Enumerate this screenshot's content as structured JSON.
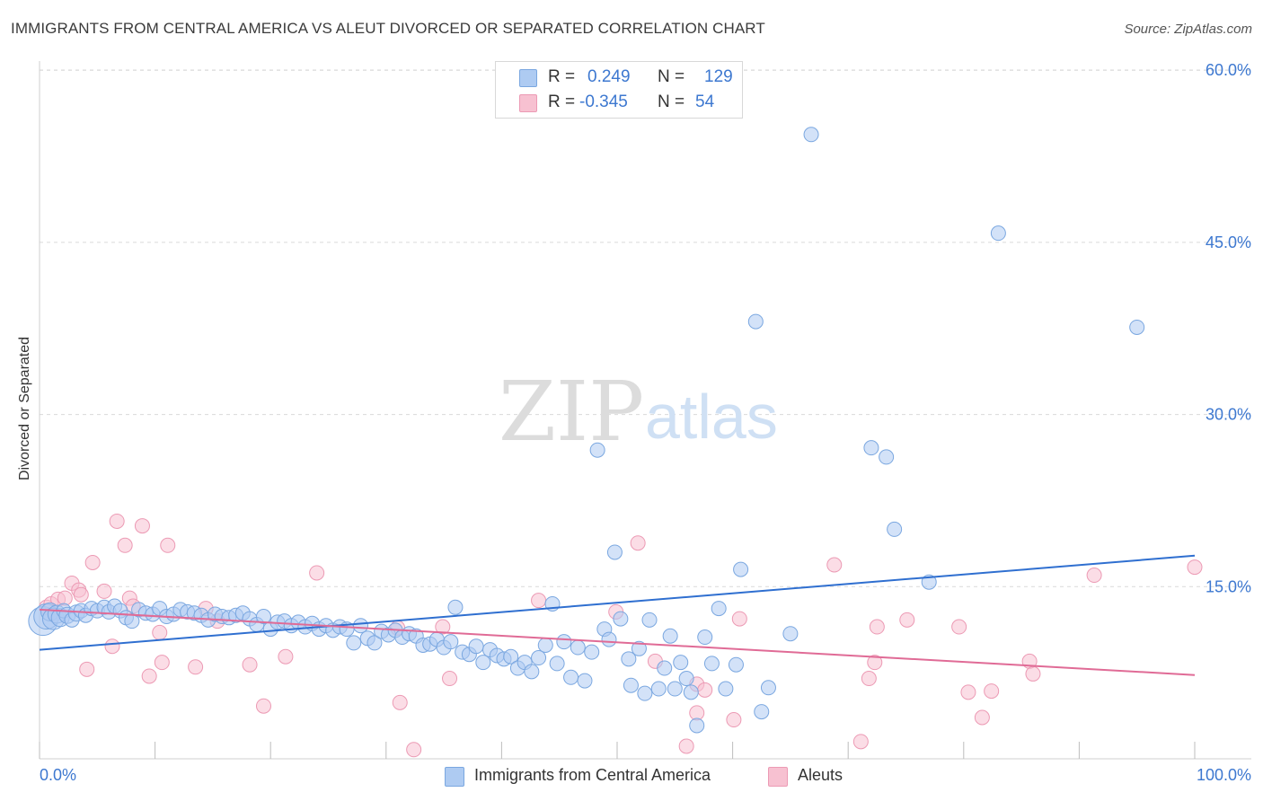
{
  "title": "IMMIGRANTS FROM CENTRAL AMERICA VS ALEUT DIVORCED OR SEPARATED CORRELATION CHART",
  "source": "Source: ZipAtlas.com",
  "watermark": {
    "zip": "ZIP",
    "atlas": "atlas"
  },
  "legend": {
    "series1": {
      "r_label": "R =",
      "r_value": "0.249",
      "n_label": "N =",
      "n_value": "129"
    },
    "series2": {
      "r_label": "R =",
      "r_value": "-0.345",
      "n_label": "N =",
      "n_value": "54"
    }
  },
  "colors": {
    "blue_fill": "#aecbf2",
    "blue_stroke": "#7aa7e0",
    "blue_line": "#2f6fd0",
    "pink_fill": "#f7c1d1",
    "pink_stroke": "#ec9ab4",
    "pink_line": "#e06b96",
    "axis_text": "#3d78d0",
    "grid": "#d9d9d9"
  },
  "chart_data": {
    "type": "scatter",
    "title": "IMMIGRANTS FROM CENTRAL AMERICA VS ALEUT DIVORCED OR SEPARATED CORRELATION CHART",
    "xlabel": "",
    "ylabel": "Divorced or Separated",
    "xlim": [
      0,
      100
    ],
    "ylim": [
      0,
      62
    ],
    "x_tick_labels": [
      "0.0%",
      "100.0%"
    ],
    "y_ticks": [
      15,
      30,
      45,
      60
    ],
    "y_tick_labels": [
      "15.0%",
      "30.0%",
      "45.0%",
      "60.0%"
    ],
    "grid": "horizontal dashed",
    "legend_placement": "top-center and bottom",
    "series": [
      {
        "name": "Immigrants from Central America",
        "R": 0.249,
        "N": 129,
        "trend": [
          [
            0,
            9.5
          ],
          [
            100,
            17.7
          ]
        ],
        "points": [
          [
            0.3,
            12.0,
            16
          ],
          [
            0.6,
            12.4,
            14
          ],
          [
            0.9,
            12.8,
            10
          ],
          [
            1.2,
            12.2,
            12
          ],
          [
            1.5,
            12.6,
            10
          ],
          [
            1.8,
            12.3,
            10
          ],
          [
            2.1,
            12.9,
            8
          ],
          [
            2.4,
            12.5,
            9
          ],
          [
            2.8,
            12.1,
            8
          ],
          [
            3.2,
            12.7,
            9
          ],
          [
            3.6,
            12.9,
            8
          ],
          [
            4.0,
            12.5,
            8
          ],
          [
            4.5,
            13.1,
            8
          ],
          [
            5.0,
            12.9,
            8
          ],
          [
            5.6,
            13.2,
            8
          ],
          [
            6.0,
            12.8,
            8
          ],
          [
            6.5,
            13.3,
            8
          ],
          [
            7.0,
            12.9,
            8
          ],
          [
            7.5,
            12.3,
            8
          ],
          [
            8.0,
            12.0,
            8
          ],
          [
            8.6,
            13.0,
            8
          ],
          [
            9.2,
            12.7,
            8
          ],
          [
            9.8,
            12.6,
            8
          ],
          [
            10.4,
            13.1,
            8
          ],
          [
            11.0,
            12.4,
            8
          ],
          [
            11.6,
            12.6,
            8
          ],
          [
            12.2,
            13.0,
            8
          ],
          [
            12.8,
            12.8,
            8
          ],
          [
            13.4,
            12.7,
            8
          ],
          [
            14.0,
            12.5,
            8
          ],
          [
            14.6,
            12.1,
            8
          ],
          [
            15.2,
            12.6,
            8
          ],
          [
            15.8,
            12.4,
            8
          ],
          [
            16.4,
            12.3,
            8
          ],
          [
            17.0,
            12.5,
            8
          ],
          [
            17.6,
            12.7,
            8
          ],
          [
            18.2,
            12.2,
            8
          ],
          [
            18.8,
            11.7,
            8
          ],
          [
            19.4,
            12.4,
            8
          ],
          [
            20.0,
            11.3,
            8
          ],
          [
            20.6,
            11.9,
            8
          ],
          [
            21.2,
            12.0,
            8
          ],
          [
            21.8,
            11.6,
            8
          ],
          [
            22.4,
            11.9,
            8
          ],
          [
            23.0,
            11.5,
            8
          ],
          [
            23.6,
            11.8,
            8
          ],
          [
            24.2,
            11.3,
            8
          ],
          [
            24.8,
            11.6,
            8
          ],
          [
            25.4,
            11.2,
            8
          ],
          [
            26.0,
            11.5,
            8
          ],
          [
            26.6,
            11.3,
            8
          ],
          [
            27.2,
            10.1,
            8
          ],
          [
            27.8,
            11.6,
            8
          ],
          [
            28.4,
            10.5,
            8
          ],
          [
            29.0,
            10.1,
            8
          ],
          [
            29.6,
            11.1,
            8
          ],
          [
            30.2,
            10.8,
            8
          ],
          [
            30.8,
            11.2,
            8
          ],
          [
            31.4,
            10.6,
            8
          ],
          [
            32.0,
            10.9,
            8
          ],
          [
            32.6,
            10.7,
            8
          ],
          [
            33.2,
            9.9,
            8
          ],
          [
            33.8,
            10.0,
            8
          ],
          [
            34.4,
            10.4,
            8
          ],
          [
            35.0,
            9.7,
            8
          ],
          [
            35.6,
            10.2,
            8
          ],
          [
            36.0,
            13.2,
            8
          ],
          [
            36.6,
            9.3,
            8
          ],
          [
            37.2,
            9.1,
            8
          ],
          [
            37.8,
            9.8,
            8
          ],
          [
            38.4,
            8.4,
            8
          ],
          [
            39.0,
            9.5,
            8
          ],
          [
            39.6,
            9.0,
            8
          ],
          [
            40.2,
            8.7,
            8
          ],
          [
            40.8,
            8.9,
            8
          ],
          [
            41.4,
            7.9,
            8
          ],
          [
            42.0,
            8.4,
            8
          ],
          [
            42.6,
            7.6,
            8
          ],
          [
            43.2,
            8.8,
            8
          ],
          [
            43.8,
            9.9,
            8
          ],
          [
            44.4,
            13.5,
            8
          ],
          [
            44.8,
            8.3,
            8
          ],
          [
            45.4,
            10.2,
            8
          ],
          [
            46.0,
            7.1,
            8
          ],
          [
            46.6,
            9.7,
            8
          ],
          [
            47.2,
            6.8,
            8
          ],
          [
            47.8,
            9.3,
            8
          ],
          [
            48.3,
            26.9,
            8
          ],
          [
            48.9,
            11.3,
            8
          ],
          [
            49.3,
            10.4,
            8
          ],
          [
            49.8,
            18.0,
            8
          ],
          [
            50.3,
            12.2,
            8
          ],
          [
            51.0,
            8.7,
            8
          ],
          [
            51.2,
            6.4,
            8
          ],
          [
            51.9,
            9.6,
            8
          ],
          [
            52.4,
            5.7,
            8
          ],
          [
            52.8,
            12.1,
            8
          ],
          [
            53.6,
            6.1,
            8
          ],
          [
            54.1,
            7.9,
            8
          ],
          [
            54.6,
            10.7,
            8
          ],
          [
            55.0,
            6.1,
            8
          ],
          [
            55.5,
            8.4,
            8
          ],
          [
            56.0,
            7.0,
            8
          ],
          [
            56.4,
            5.8,
            8
          ],
          [
            56.9,
            2.9,
            8
          ],
          [
            57.6,
            10.6,
            8
          ],
          [
            58.2,
            8.3,
            8
          ],
          [
            58.8,
            13.1,
            8
          ],
          [
            59.4,
            6.1,
            8
          ],
          [
            60.3,
            8.2,
            8
          ],
          [
            60.7,
            16.5,
            8
          ],
          [
            62.0,
            38.1,
            8
          ],
          [
            62.5,
            4.1,
            8
          ],
          [
            63.1,
            6.2,
            8
          ],
          [
            65.0,
            10.9,
            8
          ],
          [
            66.8,
            54.4,
            8
          ],
          [
            72.0,
            27.1,
            8
          ],
          [
            73.3,
            26.3,
            8
          ],
          [
            74.0,
            20.0,
            8
          ],
          [
            77.0,
            15.4,
            8
          ],
          [
            83.0,
            45.8,
            8
          ],
          [
            95.0,
            37.6,
            8
          ]
        ]
      },
      {
        "name": "Aleuts",
        "R": -0.345,
        "N": 54,
        "trend": [
          [
            0,
            13.0
          ],
          [
            100,
            7.3
          ]
        ],
        "points": [
          [
            0.6,
            13.2,
            8
          ],
          [
            1.0,
            13.5,
            8
          ],
          [
            1.6,
            13.9,
            8
          ],
          [
            2.2,
            14.0,
            8
          ],
          [
            2.8,
            15.3,
            8
          ],
          [
            3.4,
            14.7,
            8
          ],
          [
            3.6,
            14.3,
            8
          ],
          [
            4.1,
            7.8,
            8
          ],
          [
            4.6,
            17.1,
            8
          ],
          [
            5.6,
            14.6,
            8
          ],
          [
            6.3,
            9.8,
            8
          ],
          [
            6.7,
            20.7,
            8
          ],
          [
            7.4,
            18.6,
            8
          ],
          [
            7.8,
            14.0,
            8
          ],
          [
            8.1,
            13.3,
            8
          ],
          [
            8.9,
            20.3,
            8
          ],
          [
            9.5,
            7.2,
            8
          ],
          [
            10.4,
            11.0,
            8
          ],
          [
            10.6,
            8.4,
            8
          ],
          [
            11.1,
            18.6,
            8
          ],
          [
            13.5,
            8.0,
            8
          ],
          [
            14.4,
            13.1,
            8
          ],
          [
            15.4,
            12.0,
            8
          ],
          [
            18.2,
            8.2,
            8
          ],
          [
            19.4,
            4.6,
            8
          ],
          [
            21.3,
            8.9,
            8
          ],
          [
            24.0,
            16.2,
            8
          ],
          [
            31.2,
            4.9,
            8
          ],
          [
            31.0,
            11.4,
            8
          ],
          [
            32.4,
            0.8,
            8
          ],
          [
            34.9,
            11.5,
            8
          ],
          [
            35.5,
            7.0,
            8
          ],
          [
            43.2,
            13.8,
            8
          ],
          [
            49.9,
            12.8,
            8
          ],
          [
            51.8,
            18.8,
            8
          ],
          [
            53.3,
            8.5,
            8
          ],
          [
            56.9,
            4.0,
            8
          ],
          [
            56.9,
            6.5,
            8
          ],
          [
            57.6,
            6.0,
            8
          ],
          [
            56.0,
            1.1,
            8
          ],
          [
            60.1,
            3.4,
            8
          ],
          [
            60.6,
            12.2,
            8
          ],
          [
            68.8,
            16.9,
            8
          ],
          [
            71.1,
            1.5,
            8
          ],
          [
            71.8,
            7.0,
            8
          ],
          [
            72.3,
            8.4,
            8
          ],
          [
            72.5,
            11.5,
            8
          ],
          [
            75.1,
            12.1,
            8
          ],
          [
            79.6,
            11.5,
            8
          ],
          [
            80.4,
            5.8,
            8
          ],
          [
            81.6,
            3.6,
            8
          ],
          [
            82.4,
            5.9,
            8
          ],
          [
            85.7,
            8.5,
            8
          ],
          [
            86.0,
            7.4,
            8
          ],
          [
            91.3,
            16.0,
            8
          ],
          [
            100.0,
            16.7,
            8
          ]
        ]
      }
    ]
  },
  "x_axis": {
    "left_label": "0.0%",
    "right_label": "100.0%"
  },
  "bottom_legend": {
    "item1": "Immigrants from Central America",
    "item2": "Aleuts"
  }
}
